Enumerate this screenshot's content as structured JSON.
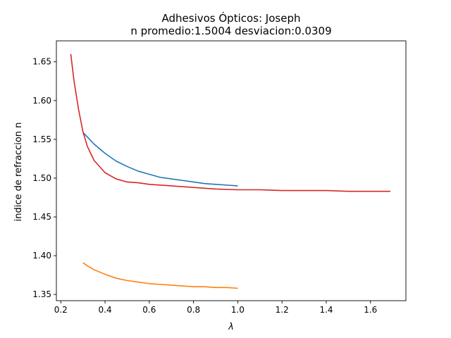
{
  "chart_data": {
    "type": "line",
    "title": "Adhesivos Ópticos: Joseph",
    "subtitle": "n promedio:1.5004 desviacion:0.0309",
    "xlabel": "λ",
    "ylabel": "indice de refraccion n",
    "xlim": [
      0.18,
      1.76
    ],
    "ylim": [
      1.342,
      1.677
    ],
    "xticks": [
      0.2,
      0.4,
      0.6,
      0.8,
      1.0,
      1.2,
      1.4,
      1.6
    ],
    "xtick_labels": [
      "0.2",
      "0.4",
      "0.6",
      "0.8",
      "1.0",
      "1.2",
      "1.4",
      "1.6"
    ],
    "yticks": [
      1.35,
      1.4,
      1.45,
      1.5,
      1.55,
      1.6,
      1.65
    ],
    "ytick_labels": [
      "1.35",
      "1.40",
      "1.45",
      "1.50",
      "1.55",
      "1.60",
      "1.65"
    ],
    "grid": false,
    "legend": "none",
    "series": [
      {
        "color": "#1f77b4",
        "x": [
          0.3,
          0.32,
          0.35,
          0.4,
          0.45,
          0.5,
          0.55,
          0.6,
          0.65,
          0.7,
          0.75,
          0.8,
          0.85,
          0.9,
          0.95,
          1.0
        ],
        "y": [
          1.559,
          1.553,
          1.544,
          1.532,
          1.522,
          1.515,
          1.509,
          1.505,
          1.501,
          1.499,
          1.497,
          1.495,
          1.493,
          1.492,
          1.491,
          1.49
        ]
      },
      {
        "color": "#ff7f0e",
        "x": [
          0.3,
          0.32,
          0.35,
          0.4,
          0.45,
          0.5,
          0.55,
          0.6,
          0.65,
          0.7,
          0.75,
          0.8,
          0.85,
          0.9,
          0.95,
          1.0
        ],
        "y": [
          1.391,
          1.387,
          1.382,
          1.376,
          1.371,
          1.368,
          1.366,
          1.364,
          1.363,
          1.362,
          1.361,
          1.36,
          1.36,
          1.359,
          1.359,
          1.358
        ]
      },
      {
        "color": "#d62728",
        "x": [
          0.245,
          0.26,
          0.28,
          0.3,
          0.32,
          0.35,
          0.4,
          0.45,
          0.5,
          0.55,
          0.6,
          0.7,
          0.8,
          0.9,
          1.0,
          1.1,
          1.2,
          1.3,
          1.4,
          1.5,
          1.6,
          1.69
        ],
        "y": [
          1.66,
          1.625,
          1.589,
          1.56,
          1.541,
          1.523,
          1.507,
          1.499,
          1.495,
          1.494,
          1.492,
          1.49,
          1.488,
          1.486,
          1.485,
          1.485,
          1.484,
          1.484,
          1.484,
          1.483,
          1.483,
          1.483
        ]
      }
    ]
  }
}
